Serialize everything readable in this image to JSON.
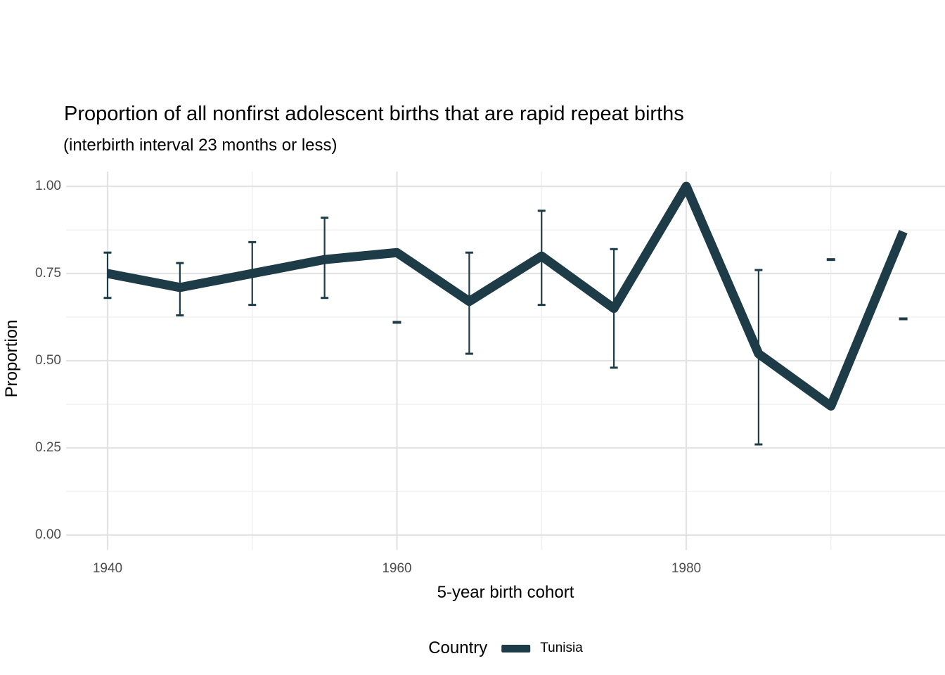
{
  "chart_data": {
    "type": "line",
    "title": "Proportion of all nonfirst adolescent births that are rapid repeat births",
    "subtitle": "(interbirth interval 23 months or less)",
    "xlabel": "5-year birth cohort",
    "ylabel": "Proportion",
    "xlim": [
      1940,
      1995
    ],
    "ylim": [
      0.0,
      1.0
    ],
    "grid": true,
    "legend_position": "bottom",
    "x": [
      1940,
      1945,
      1950,
      1955,
      1960,
      1965,
      1970,
      1975,
      1980,
      1985,
      1990,
      1995
    ],
    "series": [
      {
        "name": "Tunisia",
        "color": "#1d3c47",
        "values": [
          0.75,
          0.71,
          0.75,
          0.79,
          0.81,
          0.67,
          0.8,
          0.65,
          1.0,
          0.52,
          0.37,
          0.87
        ],
        "ci_low": [
          0.68,
          0.63,
          0.66,
          0.68,
          null,
          0.52,
          0.66,
          0.48,
          null,
          0.26,
          null,
          null
        ],
        "ci_high": [
          0.81,
          0.78,
          0.84,
          0.91,
          null,
          0.81,
          0.93,
          0.82,
          null,
          0.76,
          null,
          null
        ],
        "cap_marks": [
          {
            "x": 1960,
            "value": 0.61
          },
          {
            "x": 1990,
            "value": 0.79
          },
          {
            "x": 1995,
            "value": 0.62
          }
        ]
      }
    ],
    "x_ticks": [
      {
        "label": "1940",
        "value": 1940
      },
      {
        "label": "1960",
        "value": 1960
      },
      {
        "label": "1980",
        "value": 1980
      }
    ],
    "y_ticks": [
      {
        "label": "0.00",
        "value": 0.0
      },
      {
        "label": "0.25",
        "value": 0.25
      },
      {
        "label": "0.50",
        "value": 0.5
      },
      {
        "label": "0.75",
        "value": 0.75
      },
      {
        "label": "1.00",
        "value": 1.0
      }
    ],
    "x_minor_gridlines": [
      1950,
      1970,
      1990
    ],
    "y_minor_gridlines": [
      0.125,
      0.375,
      0.625,
      0.875
    ]
  },
  "legend": {
    "title": "Country",
    "items": [
      {
        "label": "Tunisia",
        "color": "#1d3c47"
      }
    ]
  },
  "colors": {
    "line": "#1d3c47",
    "grid_major": "#e3e3e3",
    "grid_minor": "#eeeeee",
    "tick_text": "#4d4d4d",
    "background": "#ffffff"
  }
}
